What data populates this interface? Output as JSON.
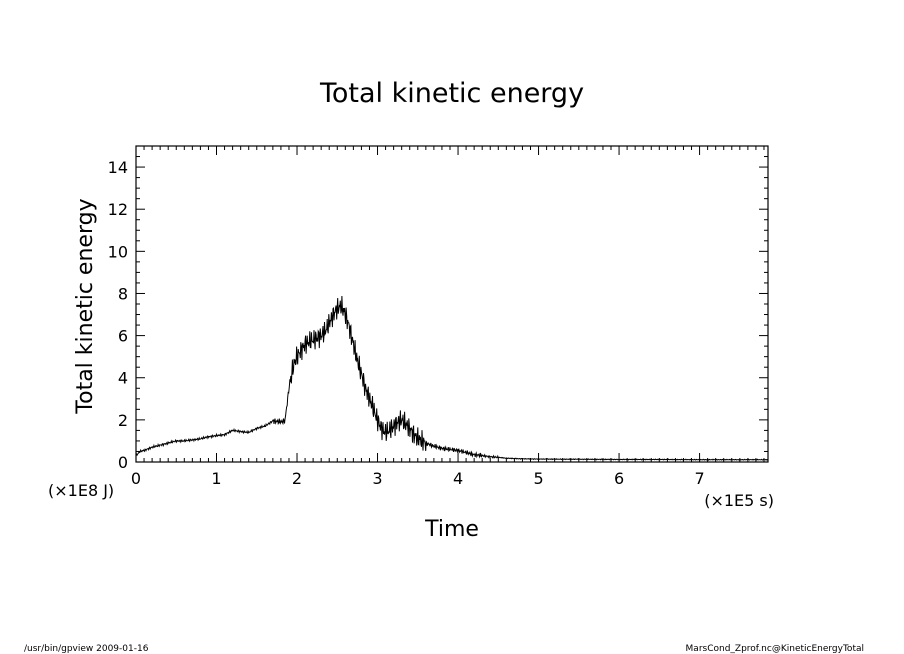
{
  "footer": {
    "left": "/usr/bin/gpview   2009-01-16",
    "right": "MarsCond_Zprof.nc@KineticEnergyTotal"
  },
  "chart_data": {
    "type": "line",
    "title": "Total kinetic energy",
    "xlabel": "Time",
    "ylabel": "Total kinetic energy",
    "x_unit": "(×1E5 s)",
    "y_unit": "(×1E8 J)",
    "xlim": [
      0,
      7.85
    ],
    "ylim": [
      0,
      15
    ],
    "x_ticks": [
      0,
      1,
      2,
      3,
      4,
      5,
      6,
      7
    ],
    "y_ticks": [
      0,
      2,
      4,
      6,
      8,
      10,
      12,
      14
    ],
    "grid": false,
    "legend": "none",
    "line_color": "#000000",
    "series": [
      {
        "x": [
          0,
          0.05,
          0.1,
          0.2,
          0.3,
          0.4,
          0.5,
          0.6,
          0.7,
          0.8,
          0.9,
          1.0,
          1.1,
          1.2,
          1.3,
          1.4,
          1.5,
          1.6,
          1.7,
          1.8,
          1.85,
          1.9,
          1.95,
          2.0,
          2.05,
          2.1,
          2.15,
          2.2,
          2.25,
          2.3,
          2.35,
          2.4,
          2.45,
          2.5,
          2.55,
          2.6,
          2.65,
          2.7,
          2.75,
          2.8,
          2.85,
          2.9,
          2.95,
          3.0,
          3.05,
          3.1,
          3.15,
          3.2,
          3.25,
          3.3,
          3.35,
          3.4,
          3.45,
          3.5,
          3.6,
          3.7,
          3.8,
          3.9,
          4.0,
          4.1,
          4.2,
          4.3,
          4.4,
          4.5,
          4.6,
          4.8,
          5.0,
          5.5,
          6.0,
          6.5,
          7.0,
          7.5,
          7.85
        ],
        "values": [
          0.3,
          0.5,
          0.55,
          0.7,
          0.8,
          0.9,
          1.0,
          1.0,
          1.05,
          1.1,
          1.2,
          1.25,
          1.3,
          1.5,
          1.45,
          1.4,
          1.6,
          1.7,
          1.95,
          1.9,
          1.95,
          3.5,
          4.5,
          5.0,
          5.3,
          5.6,
          5.7,
          5.8,
          5.9,
          6.0,
          6.2,
          6.6,
          7.0,
          7.3,
          7.4,
          7.0,
          6.4,
          5.6,
          4.8,
          4.2,
          3.5,
          3.0,
          2.5,
          2.0,
          1.6,
          1.4,
          1.5,
          1.7,
          1.9,
          2.0,
          1.8,
          1.6,
          1.3,
          1.1,
          0.9,
          0.75,
          0.65,
          0.6,
          0.55,
          0.45,
          0.35,
          0.3,
          0.25,
          0.22,
          0.18,
          0.15,
          0.14,
          0.13,
          0.12,
          0.12,
          0.11,
          0.11,
          0.11
        ]
      }
    ]
  }
}
